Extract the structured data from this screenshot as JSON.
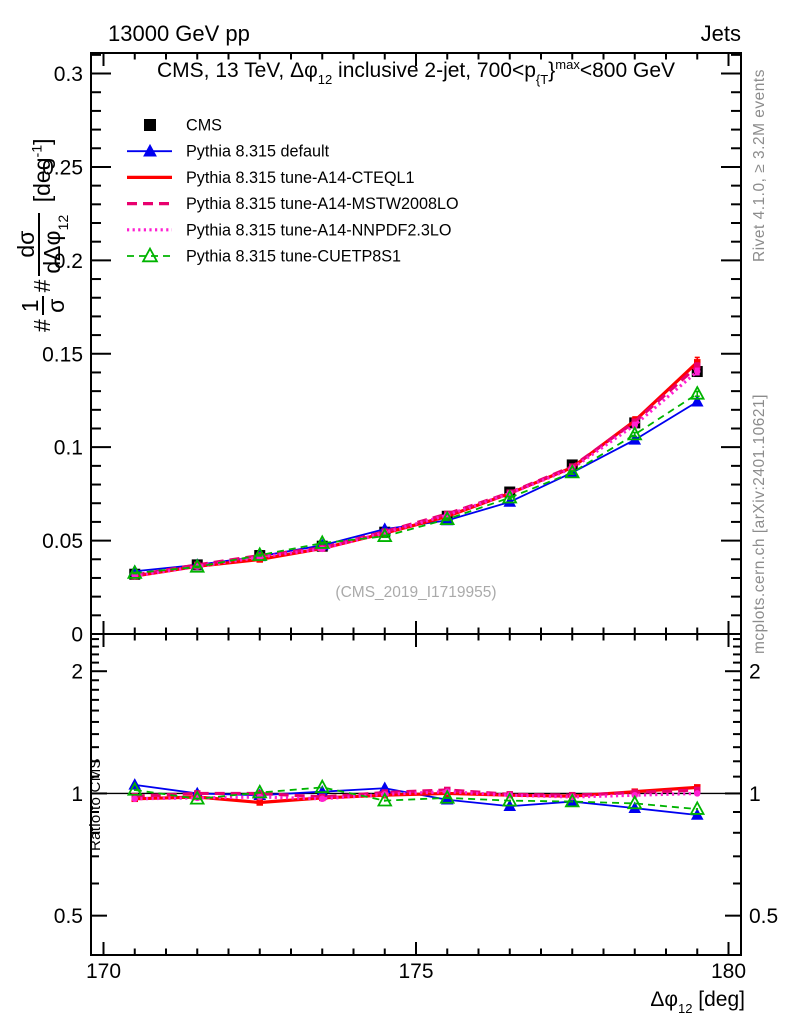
{
  "header": {
    "left": "13000 GeV pp",
    "right": "Jets"
  },
  "panel_title": {
    "pre": "CMS, 13 TeV, ",
    "phi": "Δφ",
    "phi_sub": "12",
    "mid": " inclusive 2-jet, 700<p",
    "p_sub": "{T",
    "brace": "}",
    "p_sup": "max",
    "post": "<800 GeV"
  },
  "watermark": "(CMS_2019_I1719955)",
  "side_notes": {
    "rivet": "Rivet 4.1.0, ≥ 3.2M events",
    "mcplots": "mcplots.cern.ch [arXiv:2401.10621]"
  },
  "ylabel_main": {
    "hash1": "#",
    "f1_num": "1",
    "f1_den": "σ",
    "hash2": "#",
    "f2_num": "dσ",
    "f2_den": "dΔφ",
    "f2_den_sub": "12",
    "unit_pre": " [deg",
    "unit_sup": "-1",
    "unit_post": "]"
  },
  "ylabel_ratio": "Ratio to CMS",
  "xlabel": {
    "phi": "Δφ",
    "sub": "12",
    "unit": " [deg]"
  },
  "axes": {
    "x": {
      "min": 169.8,
      "max": 180.2,
      "majors": [
        170,
        175,
        180
      ],
      "labels": [
        "170",
        "175",
        "180"
      ],
      "minor_step": 0.5
    },
    "y_main": {
      "min": 0,
      "max": 0.311,
      "majors": [
        0,
        0.05,
        0.1,
        0.15,
        0.2,
        0.25,
        0.3
      ],
      "labels": [
        "0",
        "0.05",
        "0.1",
        "0.15",
        "0.2",
        "0.25",
        "0.3"
      ],
      "minor_step": 0.01
    },
    "y_ratio": {
      "scale": "log",
      "min": 0.4,
      "max": 2.47,
      "majors": [
        0.5,
        1,
        2
      ],
      "labels": [
        "0.5",
        "1",
        "2"
      ],
      "minor_min": 0.4,
      "minor_max": 2.4,
      "minor_step": 0.1,
      "reference": 1
    }
  },
  "chart_data": {
    "type": "line",
    "title": "CMS, 13 TeV, Δφ12 inclusive 2-jet, 700<pT^max<800 GeV",
    "xlabel": "Δφ12 [deg]",
    "ylabel": "1/σ dσ/dΔφ12 [deg^-1]",
    "x": [
      170.5,
      171.5,
      172.5,
      173.5,
      174.5,
      175.5,
      176.5,
      177.5,
      178.5,
      179.5
    ],
    "cms_values": [
      0.032,
      0.037,
      0.042,
      0.047,
      0.0545,
      0.063,
      0.076,
      0.0905,
      0.113,
      0.1405
    ],
    "series": [
      {
        "name": "CMS",
        "role": "data",
        "color": "#000000",
        "marker": "square",
        "marker_size": 11,
        "legend_marker": true,
        "err_frac": 0.012
      },
      {
        "name": "Pythia 8.315 default",
        "color": "#0000f0",
        "line": "solid",
        "line_width": 1.8,
        "marker": "triangle",
        "marker_size": 10.5,
        "legend_marker": true,
        "ratio": [
          1.05,
          1.0,
          0.99,
          1.01,
          1.03,
          0.965,
          0.93,
          0.955,
          0.92,
          0.885
        ],
        "ratio_err": 0.006,
        "err_frac": 0.01
      },
      {
        "name": "Pythia 8.315 tune-A14-CTEQL1",
        "color": "#ff0000",
        "line": "solid",
        "line_width": 3.2,
        "marker": "square",
        "marker_size": 6.5,
        "legend_marker": false,
        "ratio": [
          0.97,
          0.98,
          0.95,
          0.975,
          0.99,
          1.0,
          0.99,
          0.985,
          1.01,
          1.035
        ],
        "ratio_err": 0.014,
        "err_frac": 0.018
      },
      {
        "name": "Pythia 8.315 tune-A14-MSTW2008LO",
        "color": "#e8006e",
        "line": "dashed",
        "line_width": 3.2,
        "marker": "square",
        "marker_size": 6.5,
        "legend_marker": false,
        "ratio": [
          0.985,
          1.0,
          1.0,
          0.98,
          1.005,
          1.02,
          0.995,
          0.99,
          1.005,
          1.02
        ],
        "ratio_err": 0.013,
        "err_frac": 0.012
      },
      {
        "name": "Pythia 8.315 tune-A14-NNPDF2.3LO",
        "color": "#ff1fd2",
        "line": "dotted",
        "line_width": 3.2,
        "marker": "circle",
        "marker_size": 6.5,
        "legend_marker": false,
        "ratio": [
          0.97,
          0.975,
          0.98,
          0.97,
          0.995,
          1.01,
          0.99,
          0.98,
          0.99,
          1.0
        ],
        "ratio_err": 0.013,
        "err_frac": 0.012
      },
      {
        "name": "Pythia 8.315 tune-CUETP8S1",
        "color": "#00b400",
        "line": "dashed",
        "line_width": 1.8,
        "marker": "triangle-open",
        "marker_size": 10.5,
        "legend_marker": true,
        "ratio": [
          1.02,
          0.97,
          1.005,
          1.035,
          0.96,
          0.975,
          0.96,
          0.955,
          0.945,
          0.915
        ],
        "ratio_err": 0.006,
        "err_frac": 0.01
      }
    ]
  },
  "colors": {
    "frame": "#000000",
    "gray_text": "#8c8c8c",
    "watermark": "#aaaaaa"
  }
}
